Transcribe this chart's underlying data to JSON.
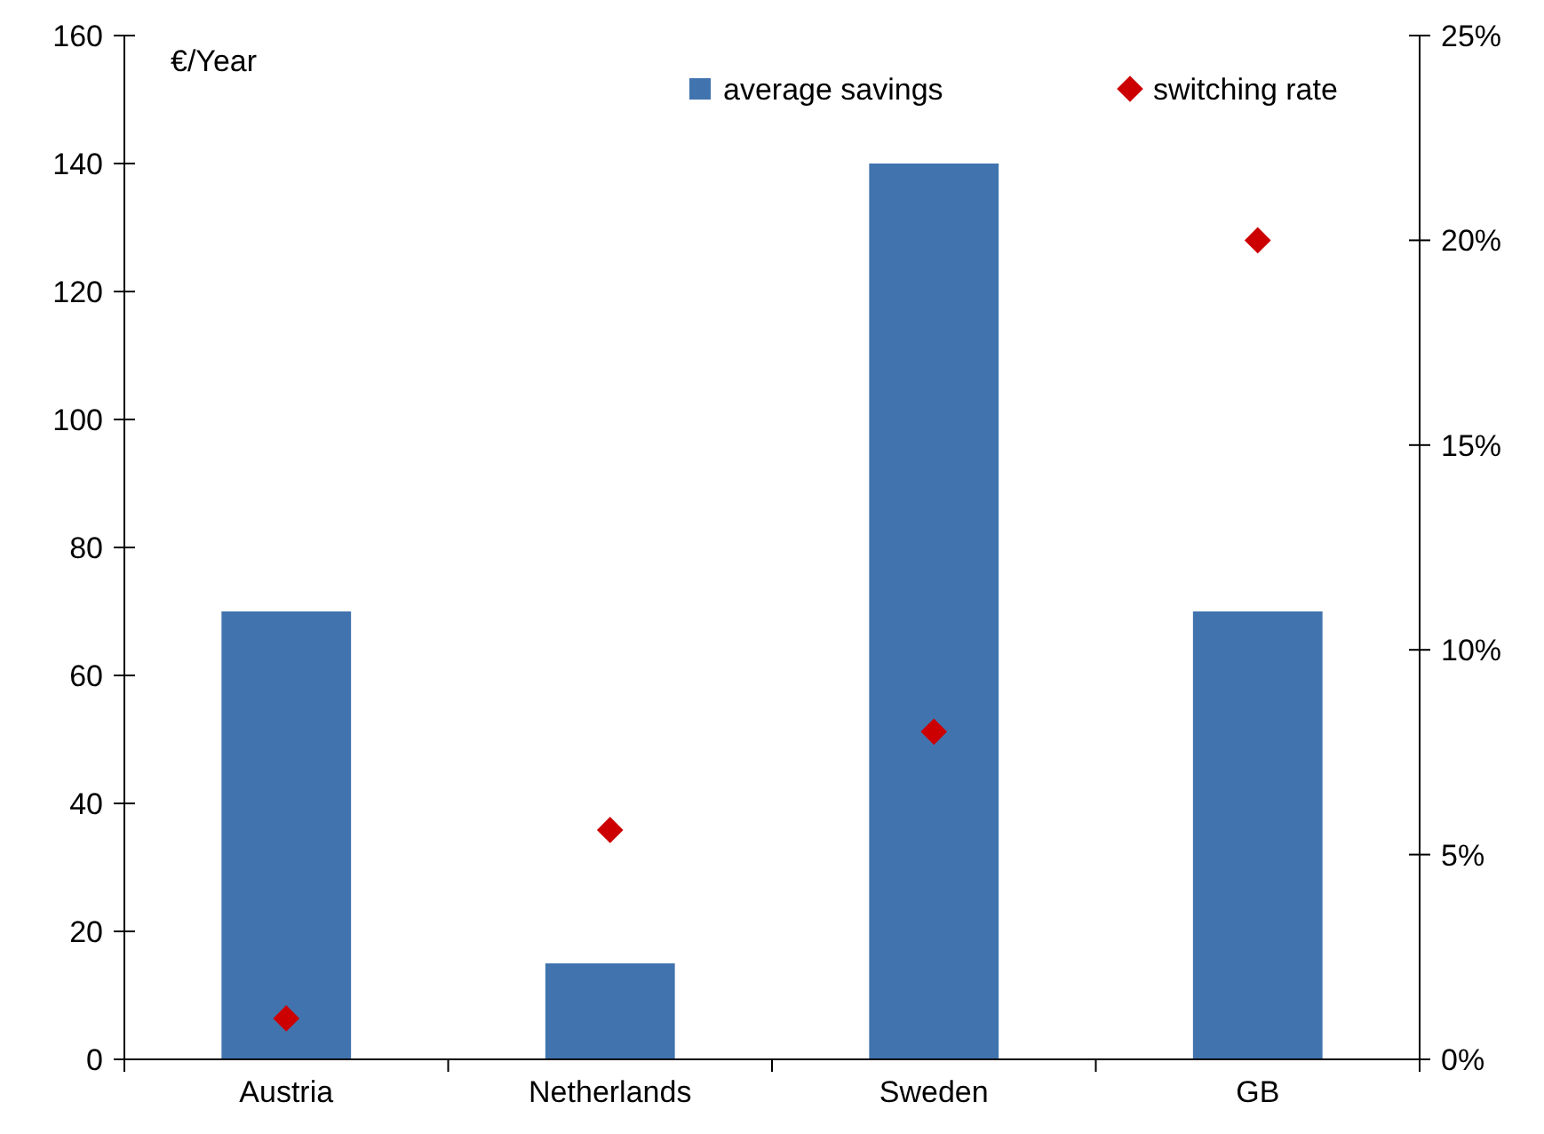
{
  "chart_data": {
    "type": "bar",
    "ylabel": "€/Year",
    "categories": [
      "Austria",
      "Netherlands",
      "Sweden",
      "GB"
    ],
    "series": [
      {
        "name": "average savings",
        "color": "#4174ae",
        "values": [
          70,
          15,
          140,
          70
        ]
      },
      {
        "name": "switching rate",
        "type": "scatter",
        "axis": "y2",
        "marker": "diamond",
        "color": "#cc0000",
        "values": [
          1,
          5.6,
          8,
          20
        ]
      }
    ],
    "ylim": [
      0,
      160
    ],
    "yticks": [
      0,
      20,
      40,
      60,
      80,
      100,
      120,
      140,
      160
    ],
    "y2lim": [
      0,
      25
    ],
    "y2ticks": [
      {
        "value": 0,
        "label": "0%"
      },
      {
        "value": 5,
        "label": "5%"
      },
      {
        "value": 10,
        "label": "10%"
      },
      {
        "value": 15,
        "label": "15%"
      },
      {
        "value": 20,
        "label": "20%"
      },
      {
        "value": 25,
        "label": "25%"
      }
    ],
    "legend": "top",
    "grid": false
  }
}
